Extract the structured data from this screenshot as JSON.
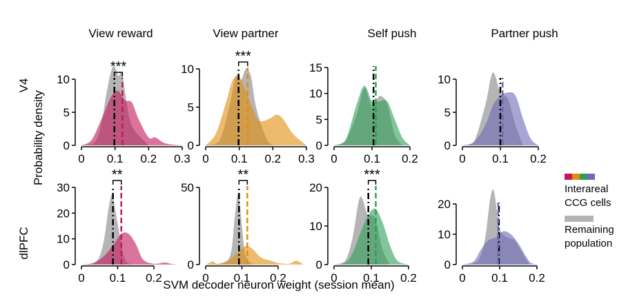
{
  "legend": {
    "swatch_colors": [
      "#c2185b",
      "#e08e0b",
      "#2e9e58",
      "#6e68b5"
    ],
    "interareal_label": "Interareal\nCCG cells",
    "remaining_label": "Remaining\npopulation",
    "remaining_color": "#b4b4b4"
  },
  "chart_data": {
    "type": "area",
    "xlabel": "SVM decoder neuron weight (session mean)",
    "ylabel": "Probability density",
    "columns": [
      "View reward",
      "View partner",
      "Self push",
      "Partner push"
    ],
    "rows": [
      "V4",
      "dlPFC"
    ],
    "panels": [
      {
        "row": "V4",
        "column": "View reward",
        "color": "#c2185b",
        "xlim": [
          0,
          0.32
        ],
        "xticks": [
          "0",
          "0.1",
          "0.2",
          "0.3"
        ],
        "ylim": [
          0,
          12
        ],
        "yticks": [
          "0",
          "5",
          "10"
        ],
        "grey_x": [
          0,
          0.04,
          0.06,
          0.075,
          0.09,
          0.1,
          0.11,
          0.12,
          0.13,
          0.15,
          0.2
        ],
        "grey_y": [
          0,
          0.5,
          3.5,
          8,
          11.5,
          11.8,
          10.5,
          11,
          8,
          3,
          0
        ],
        "colored_x": [
          0,
          0.03,
          0.06,
          0.09,
          0.11,
          0.13,
          0.15,
          0.17,
          0.2,
          0.22,
          0.25,
          0.3
        ],
        "colored_y": [
          0,
          0.8,
          4,
          7.5,
          8.2,
          6.8,
          6.5,
          4,
          1.2,
          1.2,
          0.3,
          0
        ],
        "grey_mean": 0.098,
        "colored_mean": 0.122,
        "significance": "***"
      },
      {
        "row": "V4",
        "column": "View partner",
        "color": "#e08e0b",
        "xlim": [
          0,
          0.32
        ],
        "xticks": [
          "0",
          "0.1",
          "0.2",
          "0.3"
        ],
        "ylim": [
          0,
          10
        ],
        "yticks": [
          "0",
          "5",
          "10"
        ],
        "grey_x": [
          0,
          0.04,
          0.07,
          0.09,
          0.105,
          0.12,
          0.135,
          0.15,
          0.18,
          0.2
        ],
        "grey_y": [
          0,
          0.5,
          5,
          9,
          8.5,
          10,
          9,
          5,
          1,
          0
        ],
        "colored_x": [
          0,
          0.03,
          0.06,
          0.08,
          0.1,
          0.12,
          0.14,
          0.16,
          0.19,
          0.21,
          0.23,
          0.26,
          0.3
        ],
        "colored_y": [
          0,
          1.5,
          5.5,
          8.5,
          9,
          7,
          4.8,
          3.2,
          3.5,
          4,
          3.5,
          1.5,
          0
        ],
        "grey_mean": 0.098,
        "colored_mean": 0.125,
        "significance": "***"
      },
      {
        "row": "V4",
        "column": "Self push",
        "color": "#2e9e58",
        "xlim": [
          0,
          0.22
        ],
        "xticks": [
          "0",
          "0.1",
          "0.2"
        ],
        "ylim": [
          0,
          15
        ],
        "yticks": [
          "0",
          "5",
          "10",
          "15"
        ],
        "grey_x": [
          0,
          0.03,
          0.06,
          0.08,
          0.1,
          0.12,
          0.14,
          0.16,
          0.18
        ],
        "grey_y": [
          0,
          0.8,
          6,
          11,
          7.5,
          9.5,
          8,
          2,
          0
        ],
        "colored_x": [
          0,
          0.03,
          0.06,
          0.08,
          0.1,
          0.12,
          0.14,
          0.16,
          0.18,
          0.2
        ],
        "colored_y": [
          0,
          1,
          8,
          11.5,
          8.5,
          8.5,
          8.5,
          5,
          1.5,
          0
        ],
        "grey_mean": 0.104,
        "colored_mean": 0.11,
        "significance": ""
      },
      {
        "row": "V4",
        "column": "Partner push",
        "color": "#6e68b5",
        "xlim": [
          0,
          0.22
        ],
        "xticks": [
          "0",
          "0.1",
          "0.2"
        ],
        "ylim": [
          0,
          11
        ],
        "yticks": [
          "0",
          "5",
          "10"
        ],
        "grey_x": [
          0,
          0.03,
          0.06,
          0.08,
          0.1,
          0.12,
          0.14,
          0.16
        ],
        "grey_y": [
          0,
          0.5,
          6,
          11,
          8,
          7,
          3,
          0
        ],
        "colored_x": [
          0,
          0.03,
          0.06,
          0.08,
          0.1,
          0.12,
          0.14,
          0.16,
          0.18,
          0.2
        ],
        "colored_y": [
          0,
          0.5,
          3,
          6,
          7.5,
          8,
          7.5,
          4,
          1,
          0
        ],
        "grey_mean": 0.1,
        "colored_mean": 0.106,
        "significance": ""
      },
      {
        "row": "dlPFC",
        "column": "View reward",
        "color": "#c2185b",
        "xlim": [
          0,
          0.27
        ],
        "xticks": [
          "0",
          "0.1",
          "0.2"
        ],
        "ylim": [
          0,
          30
        ],
        "yticks": [
          "0",
          "10",
          "20",
          "30"
        ],
        "grey_x": [
          0,
          0.04,
          0.06,
          0.075,
          0.085,
          0.095,
          0.105,
          0.12,
          0.14
        ],
        "grey_y": [
          0,
          1,
          8,
          22,
          27,
          20,
          12,
          2,
          0
        ],
        "colored_x": [
          0,
          0.03,
          0.06,
          0.09,
          0.11,
          0.13,
          0.15,
          0.17,
          0.2,
          0.23,
          0.25,
          0.27
        ],
        "colored_y": [
          0,
          0.5,
          3,
          8,
          12,
          12,
          8,
          2,
          0.3,
          0.8,
          0.2,
          0
        ],
        "grey_mean": 0.087,
        "colored_mean": 0.11,
        "significance": "**"
      },
      {
        "row": "dlPFC",
        "column": "View partner",
        "color": "#e08e0b",
        "xlim": [
          0,
          0.27
        ],
        "xticks": [
          "0",
          "0.1",
          "0.2"
        ],
        "ylim": [
          0,
          50
        ],
        "yticks": [
          "0",
          "50"
        ],
        "grey_x": [
          0,
          0.05,
          0.07,
          0.08,
          0.09,
          0.1,
          0.11,
          0.13
        ],
        "grey_y": [
          0,
          1,
          8,
          30,
          46,
          25,
          6,
          0
        ],
        "colored_x": [
          0,
          0.02,
          0.03,
          0.05,
          0.07,
          0.09,
          0.11,
          0.13,
          0.15,
          0.17,
          0.18,
          0.2,
          0.23,
          0.25,
          0.27
        ],
        "colored_y": [
          0,
          2,
          0.5,
          1.5,
          4,
          8,
          12,
          10,
          5,
          3,
          2.5,
          1,
          0.5,
          2.5,
          0
        ],
        "grey_mean": 0.092,
        "colored_mean": 0.115,
        "significance": "**"
      },
      {
        "row": "dlPFC",
        "column": "Self push",
        "color": "#2e9e58",
        "xlim": [
          0,
          0.22
        ],
        "xticks": [
          "0",
          "0.1",
          "0.2"
        ],
        "ylim": [
          0,
          20
        ],
        "yticks": [
          "0",
          "10",
          "20"
        ],
        "grey_x": [
          0,
          0.03,
          0.05,
          0.07,
          0.09,
          0.11,
          0.13,
          0.15
        ],
        "grey_y": [
          0,
          1,
          7,
          17.5,
          13,
          12,
          4,
          0
        ],
        "colored_x": [
          0,
          0.03,
          0.05,
          0.07,
          0.09,
          0.11,
          0.13,
          0.15,
          0.17,
          0.2
        ],
        "colored_y": [
          0,
          0.5,
          3,
          8,
          12.5,
          14.5,
          11,
          5,
          1,
          0
        ],
        "grey_mean": 0.092,
        "colored_mean": 0.112,
        "significance": "***"
      },
      {
        "row": "dlPFC",
        "column": "Partner push",
        "color": "#6e68b5",
        "xlim": [
          0,
          0.22
        ],
        "xticks": [
          "0",
          "0.1",
          "0.2"
        ],
        "ylim": [
          0,
          25
        ],
        "yticks": [
          "0",
          "10",
          "20"
        ],
        "grey_x": [
          0,
          0.04,
          0.06,
          0.075,
          0.085,
          0.1,
          0.12,
          0.14,
          0.16,
          0.18
        ],
        "grey_y": [
          0,
          1,
          8,
          22,
          24,
          12,
          9,
          8,
          4,
          0
        ],
        "colored_x": [
          0,
          0.03,
          0.05,
          0.07,
          0.09,
          0.11,
          0.13,
          0.15,
          0.18,
          0.2
        ],
        "colored_y": [
          0,
          1,
          5,
          8,
          9,
          11,
          10,
          7,
          1,
          0
        ],
        "grey_mean": 0.098,
        "colored_mean": 0.096,
        "significance": ""
      }
    ]
  }
}
